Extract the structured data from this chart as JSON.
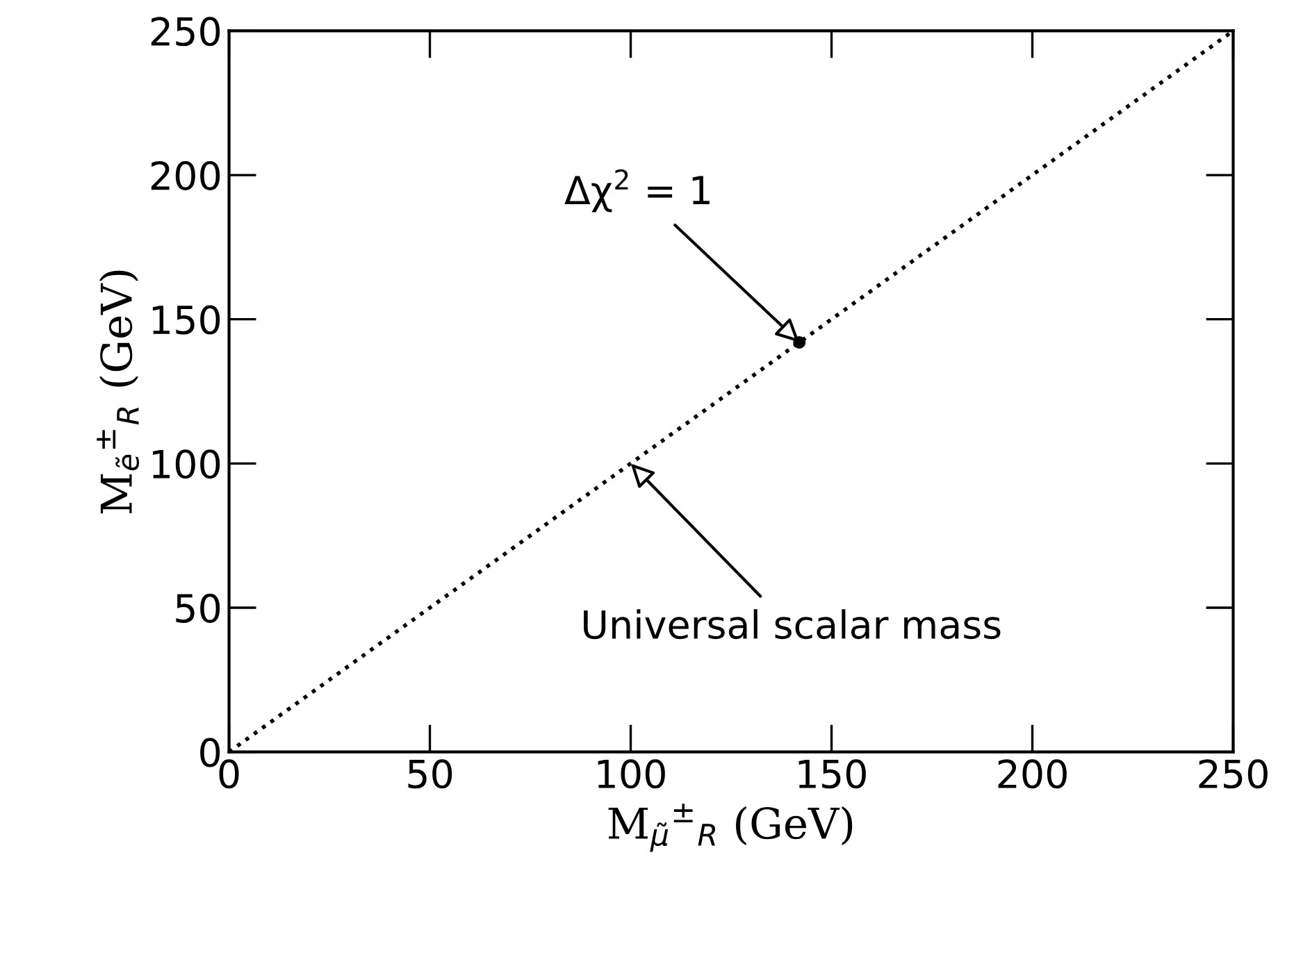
{
  "chart_data": {
    "type": "line",
    "xlabel": "M$_{μ̃}$$^{±}$$_{R}$ (GeV)",
    "ylabel": "M$_{ẽ}$$^{±}$$_{R}$ (GeV)",
    "x": [
      0,
      250
    ],
    "series": [
      {
        "color": "#000000",
        "line_style": "dotted",
        "values": [
          0,
          250
        ]
      },
      {
        "type": "scatter",
        "color": "#000000",
        "marker": "circle",
        "x": [
          142
        ],
        "values": [
          142
        ]
      }
    ],
    "xlim": [
      0,
      250
    ],
    "ylim": [
      0,
      250
    ],
    "xticks": [
      0,
      50,
      100,
      150,
      200,
      250
    ],
    "yticks": [
      0,
      50,
      100,
      150,
      200,
      250
    ],
    "grid": false,
    "legend": false,
    "annotations": [
      {
        "text": "Δχ$^{2}$ = 1",
        "x": 142,
        "y": 142
      },
      {
        "text": "Universal scalar mass",
        "x": 100,
        "y": 100
      }
    ]
  }
}
